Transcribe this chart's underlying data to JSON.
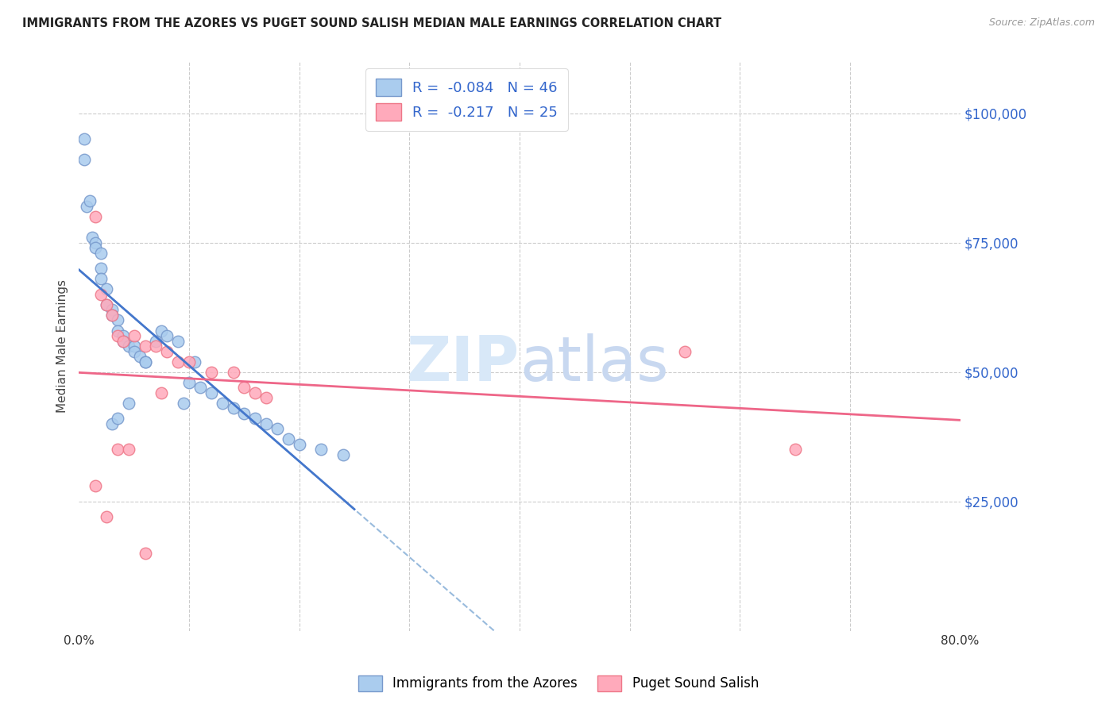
{
  "title": "IMMIGRANTS FROM THE AZORES VS PUGET SOUND SALISH MEDIAN MALE EARNINGS CORRELATION CHART",
  "source": "Source: ZipAtlas.com",
  "ylabel": "Median Male Earnings",
  "r_blue": -0.084,
  "n_blue": 46,
  "r_pink": -0.217,
  "n_pink": 25,
  "legend_label_blue": "Immigrants from the Azores",
  "legend_label_pink": "Puget Sound Salish",
  "color_blue_fill": "#AACCEE",
  "color_blue_edge": "#7799CC",
  "color_pink_fill": "#FFAABB",
  "color_pink_edge": "#EE7788",
  "color_line_blue": "#4477CC",
  "color_line_blue_dash": "#99BBDD",
  "color_line_pink": "#EE6688",
  "color_grid": "#CCCCCC",
  "color_ytick": "#3366CC",
  "watermark_color": "#D8E8F8",
  "blue_points_x": [
    0.5,
    0.5,
    0.7,
    1.0,
    1.2,
    1.5,
    1.5,
    2.0,
    2.0,
    2.0,
    2.5,
    2.5,
    3.0,
    3.0,
    3.5,
    3.5,
    4.0,
    4.0,
    4.5,
    5.0,
    5.0,
    5.5,
    6.0,
    6.0,
    7.0,
    7.5,
    8.0,
    9.0,
    9.5,
    10.0,
    10.5,
    11.0,
    12.0,
    13.0,
    14.0,
    15.0,
    16.0,
    17.0,
    18.0,
    19.0,
    20.0,
    22.0,
    24.0,
    3.0,
    3.5,
    4.5
  ],
  "blue_points_y": [
    95000,
    91000,
    82000,
    83000,
    76000,
    75000,
    74000,
    73000,
    70000,
    68000,
    66000,
    63000,
    62000,
    61000,
    60000,
    58000,
    57000,
    56000,
    55000,
    55000,
    54000,
    53000,
    52000,
    52000,
    56000,
    58000,
    57000,
    56000,
    44000,
    48000,
    52000,
    47000,
    46000,
    44000,
    43000,
    42000,
    41000,
    40000,
    39000,
    37000,
    36000,
    35000,
    34000,
    40000,
    41000,
    44000
  ],
  "pink_points_x": [
    1.5,
    2.0,
    2.5,
    3.0,
    3.5,
    4.0,
    5.0,
    6.0,
    7.0,
    8.0,
    9.0,
    10.0,
    12.0,
    14.0,
    15.0,
    16.0,
    17.0,
    3.5,
    4.5,
    1.5,
    2.5,
    6.0,
    55.0,
    65.0,
    7.5
  ],
  "pink_points_y": [
    80000,
    65000,
    63000,
    61000,
    57000,
    56000,
    57000,
    55000,
    55000,
    54000,
    52000,
    52000,
    50000,
    50000,
    47000,
    46000,
    45000,
    35000,
    35000,
    28000,
    22000,
    15000,
    54000,
    35000,
    46000
  ],
  "xlim": [
    0.0,
    80.0
  ],
  "ylim": [
    0,
    110000
  ],
  "yticks": [
    25000,
    50000,
    75000,
    100000
  ],
  "ytick_labels": [
    "$25,000",
    "$50,000",
    "$75,000",
    "$100,000"
  ],
  "xticks_minor": [
    10,
    20,
    30,
    40,
    50,
    60,
    70
  ]
}
